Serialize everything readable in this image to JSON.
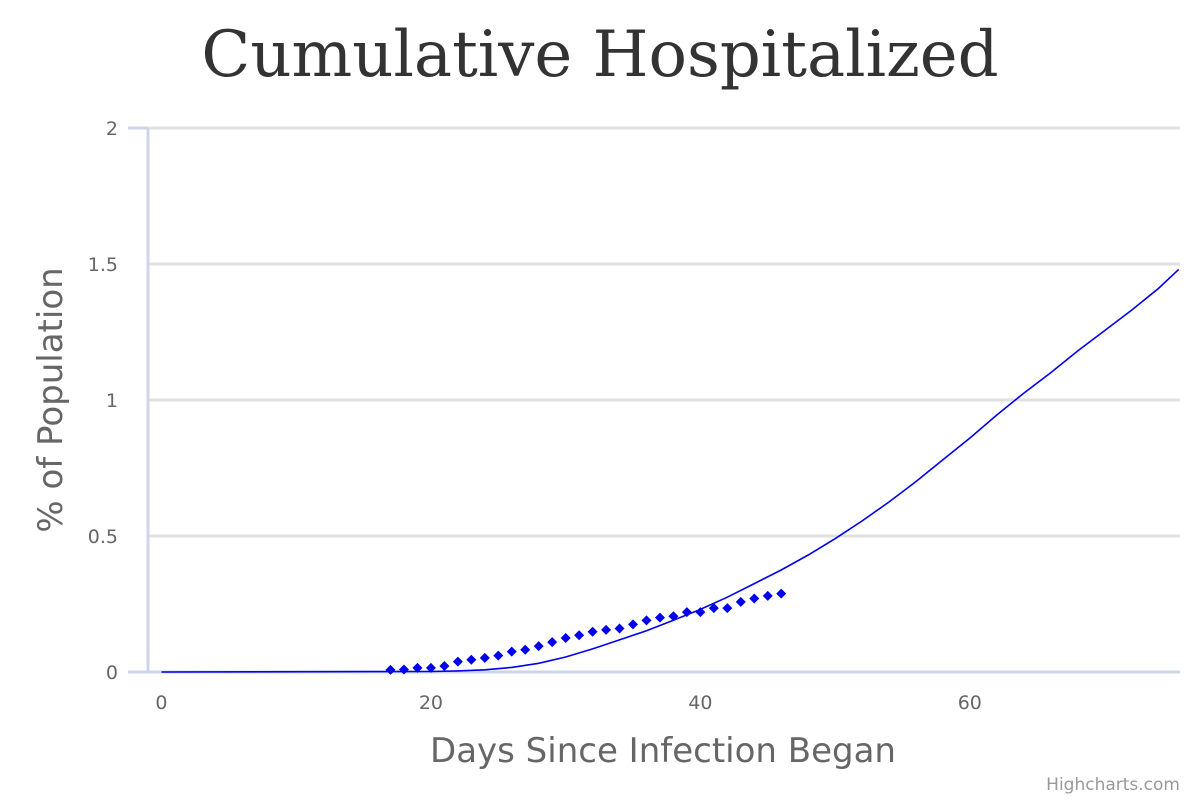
{
  "chart_data": {
    "type": "scatter",
    "title": "Cumulative Hospitalized",
    "xlabel": "Days Since Infection Began",
    "ylabel": "% of Population",
    "xlim": [
      -1,
      75.6
    ],
    "ylim": [
      0,
      2
    ],
    "x_ticks": [
      0,
      20,
      40,
      60
    ],
    "y_ticks": [
      0,
      0.5,
      1,
      1.5,
      2
    ],
    "x_tick_labels": [
      "0",
      "20",
      "40",
      "60"
    ],
    "y_tick_labels": [
      "0",
      "0.5",
      "1",
      "1.5",
      "2"
    ],
    "grid": true,
    "series": [
      {
        "type": "scatter",
        "marker": "diamond",
        "color": "#0000ee",
        "points": [
          [
            17,
            0.008
          ],
          [
            18,
            0.009
          ],
          [
            19,
            0.015
          ],
          [
            20,
            0.015
          ],
          [
            21,
            0.022
          ],
          [
            22,
            0.038
          ],
          [
            23,
            0.045
          ],
          [
            24,
            0.052
          ],
          [
            25,
            0.06
          ],
          [
            26,
            0.075
          ],
          [
            27,
            0.082
          ],
          [
            28,
            0.095
          ],
          [
            29,
            0.11
          ],
          [
            30,
            0.125
          ],
          [
            31,
            0.135
          ],
          [
            32,
            0.148
          ],
          [
            33,
            0.155
          ],
          [
            34,
            0.16
          ],
          [
            35,
            0.175
          ],
          [
            36,
            0.19
          ],
          [
            37,
            0.2
          ],
          [
            38,
            0.205
          ],
          [
            39,
            0.22
          ],
          [
            40,
            0.22
          ],
          [
            41,
            0.235
          ],
          [
            42,
            0.235
          ],
          [
            43,
            0.258
          ],
          [
            44,
            0.27
          ],
          [
            45,
            0.28
          ],
          [
            46,
            0.288
          ]
        ]
      },
      {
        "type": "line",
        "color": "#0000ee",
        "points": [
          [
            0,
            0
          ],
          [
            20,
            0.002
          ],
          [
            22,
            0.004
          ],
          [
            24,
            0.008
          ],
          [
            26,
            0.017
          ],
          [
            28,
            0.032
          ],
          [
            30,
            0.055
          ],
          [
            32,
            0.085
          ],
          [
            34,
            0.118
          ],
          [
            36,
            0.152
          ],
          [
            38,
            0.19
          ],
          [
            40,
            0.23
          ],
          [
            42,
            0.275
          ],
          [
            44,
            0.325
          ],
          [
            46,
            0.375
          ],
          [
            48,
            0.43
          ],
          [
            50,
            0.49
          ],
          [
            52,
            0.555
          ],
          [
            54,
            0.625
          ],
          [
            56,
            0.7
          ],
          [
            58,
            0.78
          ],
          [
            60,
            0.86
          ],
          [
            62,
            0.945
          ],
          [
            64,
            1.025
          ],
          [
            66,
            1.1
          ],
          [
            68,
            1.18
          ],
          [
            70,
            1.255
          ],
          [
            72,
            1.33
          ],
          [
            74,
            1.41
          ],
          [
            75.5,
            1.48
          ]
        ]
      }
    ]
  },
  "credits": "Highcharts.com"
}
